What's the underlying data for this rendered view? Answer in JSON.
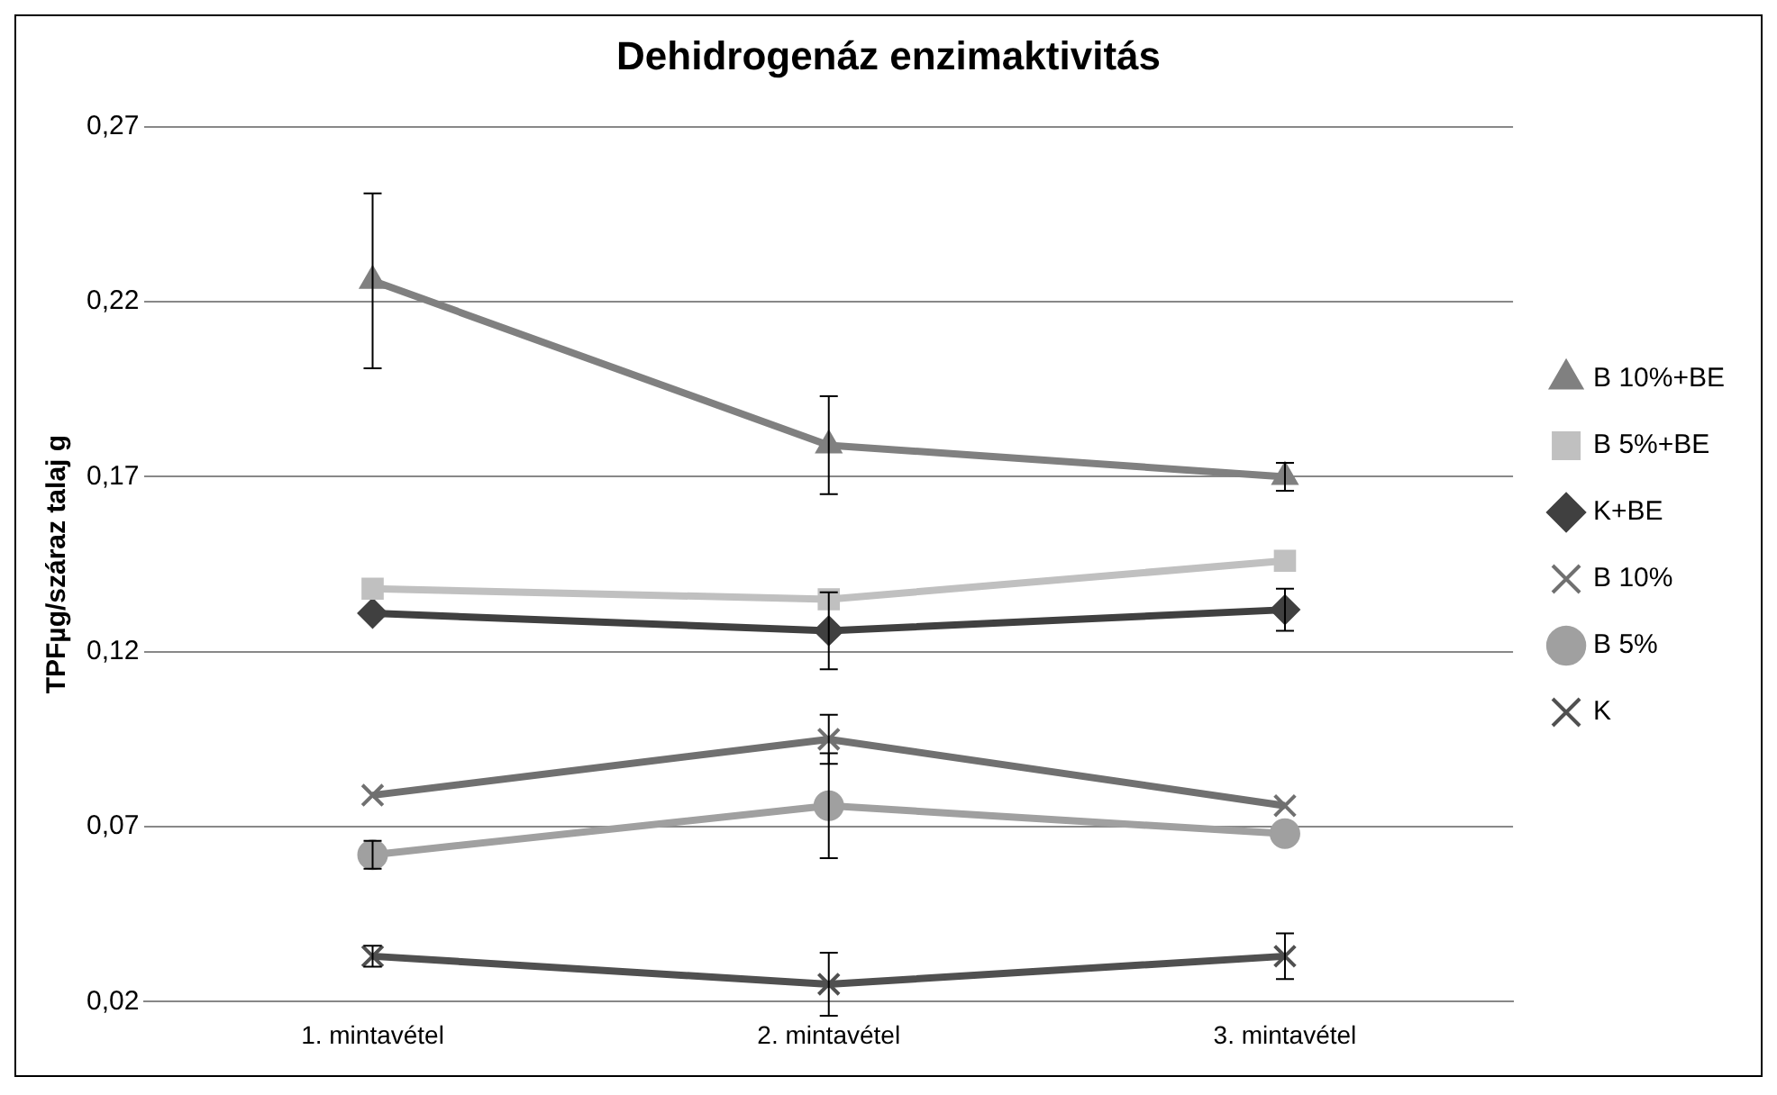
{
  "chart_data": {
    "type": "line",
    "title": "Dehidrogenáz enzimaktivitás",
    "ylabel": "TPFµg/száraz talaj g",
    "categories": [
      "1. mintavétel",
      "2. mintavétel",
      "3. mintavétel"
    ],
    "ylim": [
      0.02,
      0.27
    ],
    "yticks": [
      {
        "value": 0.02,
        "label": "0,02"
      },
      {
        "value": 0.07,
        "label": "0,07"
      },
      {
        "value": 0.12,
        "label": "0,12"
      },
      {
        "value": 0.17,
        "label": "0,17"
      },
      {
        "value": 0.22,
        "label": "0,22"
      },
      {
        "value": 0.27,
        "label": "0,27"
      }
    ],
    "grid": "y",
    "legend": "right",
    "series": [
      {
        "name": "B 10%+BE",
        "color": "#808080",
        "marker": "triangle",
        "values": [
          0.226,
          0.179,
          0.17
        ],
        "errors": [
          0.025,
          0.014,
          0.004
        ]
      },
      {
        "name": "B 5%+BE",
        "color": "#c0c0c0",
        "marker": "square",
        "values": [
          0.138,
          0.135,
          0.146
        ]
      },
      {
        "name": "K+BE",
        "color": "#404040",
        "marker": "diamond",
        "values": [
          0.131,
          0.126,
          0.132
        ],
        "errors": [
          null,
          0.011,
          0.006
        ]
      },
      {
        "name": "B 10%",
        "color": "#707070",
        "marker": "cross",
        "values": [
          0.079,
          0.095,
          0.076
        ],
        "errors": [
          null,
          0.007,
          null
        ]
      },
      {
        "name": "B 5%",
        "color": "#a0a0a0",
        "marker": "circle",
        "values": [
          0.062,
          0.076,
          0.068
        ],
        "errors": [
          0.004,
          0.015,
          null
        ]
      },
      {
        "name": "K",
        "color": "#505050",
        "marker": "cross",
        "values": [
          0.033,
          0.025,
          0.033
        ],
        "errors": [
          0.003,
          0.009,
          0.0065
        ]
      }
    ]
  }
}
